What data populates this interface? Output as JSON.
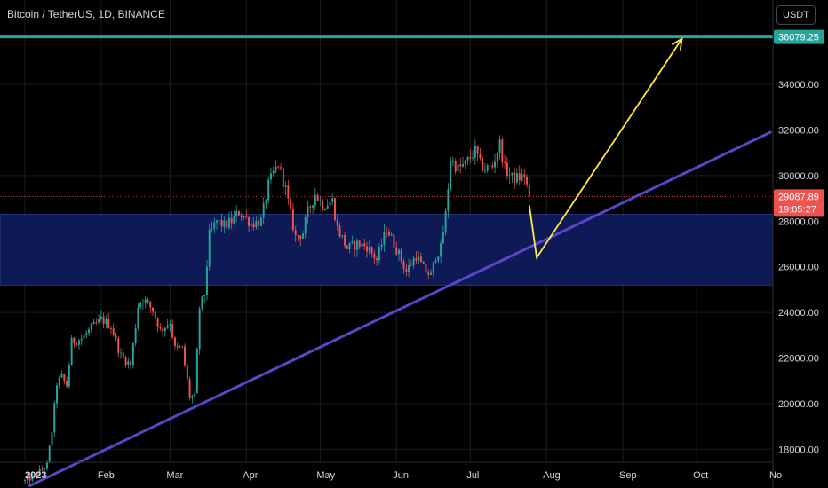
{
  "header": {
    "title": "Bitcoin / TetherUS, 1D, BINANCE",
    "currency_button": "USDT"
  },
  "colors": {
    "background": "#000000",
    "up": "#26a69a",
    "down": "#ef5350",
    "zone": "#0e1a55",
    "resistance": "#26a69a",
    "trendline": "#5b45c9",
    "projection": "#ffeb3b",
    "last_price": "#ef5350"
  },
  "chart_data": {
    "type": "candlestick",
    "title": "Bitcoin / TetherUS, 1D, BINANCE",
    "xlabel": "",
    "ylabel": "",
    "ylim": [
      16300,
      37700
    ],
    "x_range": [
      "2023-01-01",
      "2023-11-01"
    ],
    "y_ticks": [
      "18000.00",
      "20000.00",
      "22000.00",
      "24000.00",
      "26000.00",
      "28000.00",
      "30000.00",
      "32000.00",
      "34000.00"
    ],
    "x_ticks": [
      {
        "label": "2023",
        "date": "2023-01-01"
      },
      {
        "label": "Feb",
        "date": "2023-02-01"
      },
      {
        "label": "Mar",
        "date": "2023-03-01"
      },
      {
        "label": "Apr",
        "date": "2023-04-01"
      },
      {
        "label": "May",
        "date": "2023-05-01"
      },
      {
        "label": "Jun",
        "date": "2023-06-01"
      },
      {
        "label": "Jul",
        "date": "2023-07-01"
      },
      {
        "label": "Aug",
        "date": "2023-08-01"
      },
      {
        "label": "Sep",
        "date": "2023-09-01"
      },
      {
        "label": "Oct",
        "date": "2023-10-01"
      },
      {
        "label": "No",
        "date": "2023-11-01"
      }
    ],
    "grid": true,
    "resistance_level": {
      "value": 36079.25,
      "label": "36079.25"
    },
    "last_price": {
      "value": 29087.89,
      "label": "29087.89",
      "countdown": "19:05:27"
    },
    "zone": {
      "top": 28300,
      "bottom": 25200
    },
    "trendline": {
      "start": {
        "date": "2023-01-03",
        "value": 16400
      },
      "end": {
        "date": "2023-10-31",
        "value": 31900
      }
    },
    "projection": [
      {
        "date": "2023-07-25",
        "value": 28700
      },
      {
        "date": "2023-07-28",
        "value": 26400
      },
      {
        "date": "2023-09-25",
        "value": 36000
      }
    ],
    "closes": [
      {
        "date": "2023-01-01",
        "close": 16600
      },
      {
        "date": "2023-01-05",
        "close": 16850
      },
      {
        "date": "2023-01-08",
        "close": 17100
      },
      {
        "date": "2023-01-10",
        "close": 17300
      },
      {
        "date": "2023-01-12",
        "close": 18800
      },
      {
        "date": "2023-01-14",
        "close": 20900
      },
      {
        "date": "2023-01-16",
        "close": 21150
      },
      {
        "date": "2023-01-18",
        "close": 20800
      },
      {
        "date": "2023-01-20",
        "close": 22700
      },
      {
        "date": "2023-01-24",
        "close": 22850
      },
      {
        "date": "2023-01-28",
        "close": 23300
      },
      {
        "date": "2023-02-01",
        "close": 23700
      },
      {
        "date": "2023-02-05",
        "close": 23400
      },
      {
        "date": "2023-02-09",
        "close": 22100
      },
      {
        "date": "2023-02-13",
        "close": 21700
      },
      {
        "date": "2023-02-16",
        "close": 24300
      },
      {
        "date": "2023-02-18",
        "close": 24600
      },
      {
        "date": "2023-02-22",
        "close": 24100
      },
      {
        "date": "2023-02-25",
        "close": 23200
      },
      {
        "date": "2023-03-01",
        "close": 23600
      },
      {
        "date": "2023-03-03",
        "close": 22400
      },
      {
        "date": "2023-03-06",
        "close": 22400
      },
      {
        "date": "2023-03-09",
        "close": 20300
      },
      {
        "date": "2023-03-11",
        "close": 20300
      },
      {
        "date": "2023-03-13",
        "close": 24200
      },
      {
        "date": "2023-03-15",
        "close": 24800
      },
      {
        "date": "2023-03-17",
        "close": 27400
      },
      {
        "date": "2023-03-20",
        "close": 28000
      },
      {
        "date": "2023-03-23",
        "close": 27800
      },
      {
        "date": "2023-03-26",
        "close": 28000
      },
      {
        "date": "2023-03-29",
        "close": 28400
      },
      {
        "date": "2023-04-03",
        "close": 27900
      },
      {
        "date": "2023-04-07",
        "close": 28000
      },
      {
        "date": "2023-04-10",
        "close": 29600
      },
      {
        "date": "2023-04-12",
        "close": 30100
      },
      {
        "date": "2023-04-14",
        "close": 30500
      },
      {
        "date": "2023-04-17",
        "close": 29400
      },
      {
        "date": "2023-04-19",
        "close": 28300
      },
      {
        "date": "2023-04-21",
        "close": 27300
      },
      {
        "date": "2023-04-24",
        "close": 27500
      },
      {
        "date": "2023-04-26",
        "close": 28400
      },
      {
        "date": "2023-04-29",
        "close": 29200
      },
      {
        "date": "2023-05-02",
        "close": 28700
      },
      {
        "date": "2023-05-06",
        "close": 28900
      },
      {
        "date": "2023-05-08",
        "close": 27700
      },
      {
        "date": "2023-05-12",
        "close": 26800
      },
      {
        "date": "2023-05-16",
        "close": 27000
      },
      {
        "date": "2023-05-20",
        "close": 26900
      },
      {
        "date": "2023-05-24",
        "close": 26300
      },
      {
        "date": "2023-05-28",
        "close": 27700
      },
      {
        "date": "2023-06-01",
        "close": 26800
      },
      {
        "date": "2023-06-05",
        "close": 25800
      },
      {
        "date": "2023-06-09",
        "close": 26500
      },
      {
        "date": "2023-06-12",
        "close": 25900
      },
      {
        "date": "2023-06-15",
        "close": 25600
      },
      {
        "date": "2023-06-17",
        "close": 26500
      },
      {
        "date": "2023-06-19",
        "close": 26800
      },
      {
        "date": "2023-06-21",
        "close": 28300
      },
      {
        "date": "2023-06-23",
        "close": 30700
      },
      {
        "date": "2023-06-26",
        "close": 30300
      },
      {
        "date": "2023-06-29",
        "close": 30500
      },
      {
        "date": "2023-07-03",
        "close": 31100
      },
      {
        "date": "2023-07-05",
        "close": 30500
      },
      {
        "date": "2023-07-07",
        "close": 30300
      },
      {
        "date": "2023-07-10",
        "close": 30400
      },
      {
        "date": "2023-07-13",
        "close": 31400
      },
      {
        "date": "2023-07-15",
        "close": 30300
      },
      {
        "date": "2023-07-18",
        "close": 29900
      },
      {
        "date": "2023-07-21",
        "close": 29900
      },
      {
        "date": "2023-07-23",
        "close": 30000
      },
      {
        "date": "2023-07-25",
        "close": 29100
      }
    ]
  }
}
